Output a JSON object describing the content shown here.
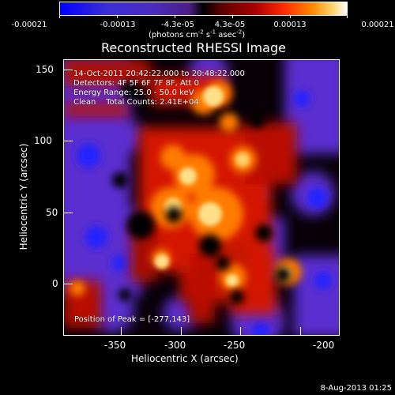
{
  "colorbar": {
    "labels": [
      "-0.00021",
      "-0.00013",
      "-4.3e-05",
      "4.3e-05",
      "0.00013",
      "0.00021"
    ],
    "units_prefix": "(photons cm",
    "units_sup1": "-2",
    "units_mid": " s",
    "units_sup2": "-1",
    "units_mid2": " asec",
    "units_sup3": "-2",
    "units_suffix": ")"
  },
  "plot": {
    "title": "Reconstructed RHESSI Image",
    "xlabel": "Heliocentric X (arcsec)",
    "ylabel": "Heliocentric Y (arcsec)",
    "xticks": [
      "-350",
      "-300",
      "-250",
      "-200"
    ],
    "yticks": [
      "150",
      "100",
      "50",
      "0"
    ]
  },
  "overlay": {
    "line1": "14-Oct-2011 20:42:22.000 to 20:48:22.000",
    "line2": "Detectors: 4F 5F 6F 7F 8F, Att 0",
    "line3": "Energy Range: 25.0 - 50.0 keV",
    "line4": "Clean    Total Counts: 2.41E+04",
    "peak": "Position of Peak = [-277,143]"
  },
  "footer": {
    "date": "8-Aug-2013 01:25"
  },
  "colors": {
    "blue": "#2323ff",
    "purple": "#5a2dcf",
    "dark": "#000000",
    "red": "#ff1a00",
    "orange": "#ff8a00",
    "yellow": "#ffe08a"
  }
}
